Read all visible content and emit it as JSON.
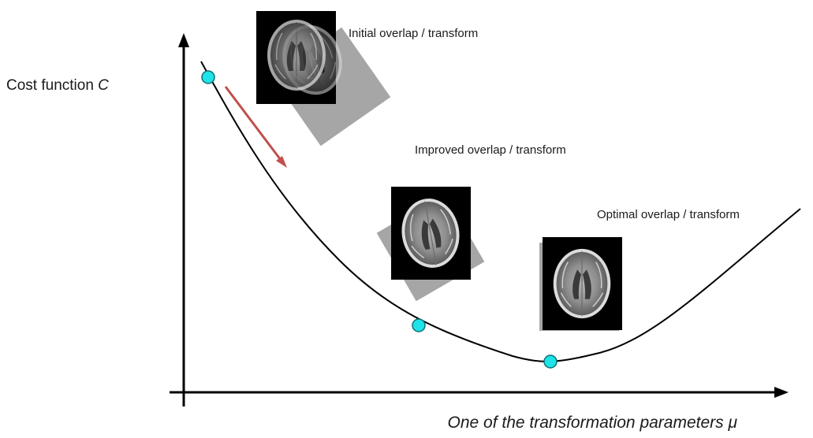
{
  "axes": {
    "y_label_text": "Cost function ",
    "y_label_symbol": "C",
    "x_label": "One of the transformation parameters μ"
  },
  "stages": [
    {
      "label": "Initial overlap / transform"
    },
    {
      "label": "Improved overlap / transform"
    },
    {
      "label": "Optimal overlap / transform"
    }
  ],
  "colors": {
    "axis": "#000000",
    "curve": "#000000",
    "marker_fill": "#1ee3e8",
    "marker_stroke": "#0d6f74",
    "arrow": "#c0504d",
    "image_bg": "#000000",
    "shadow": "#a6a6a6"
  },
  "icons": {
    "arrow": "gradient-descent-arrow",
    "scan": "brain-mri-slice"
  }
}
